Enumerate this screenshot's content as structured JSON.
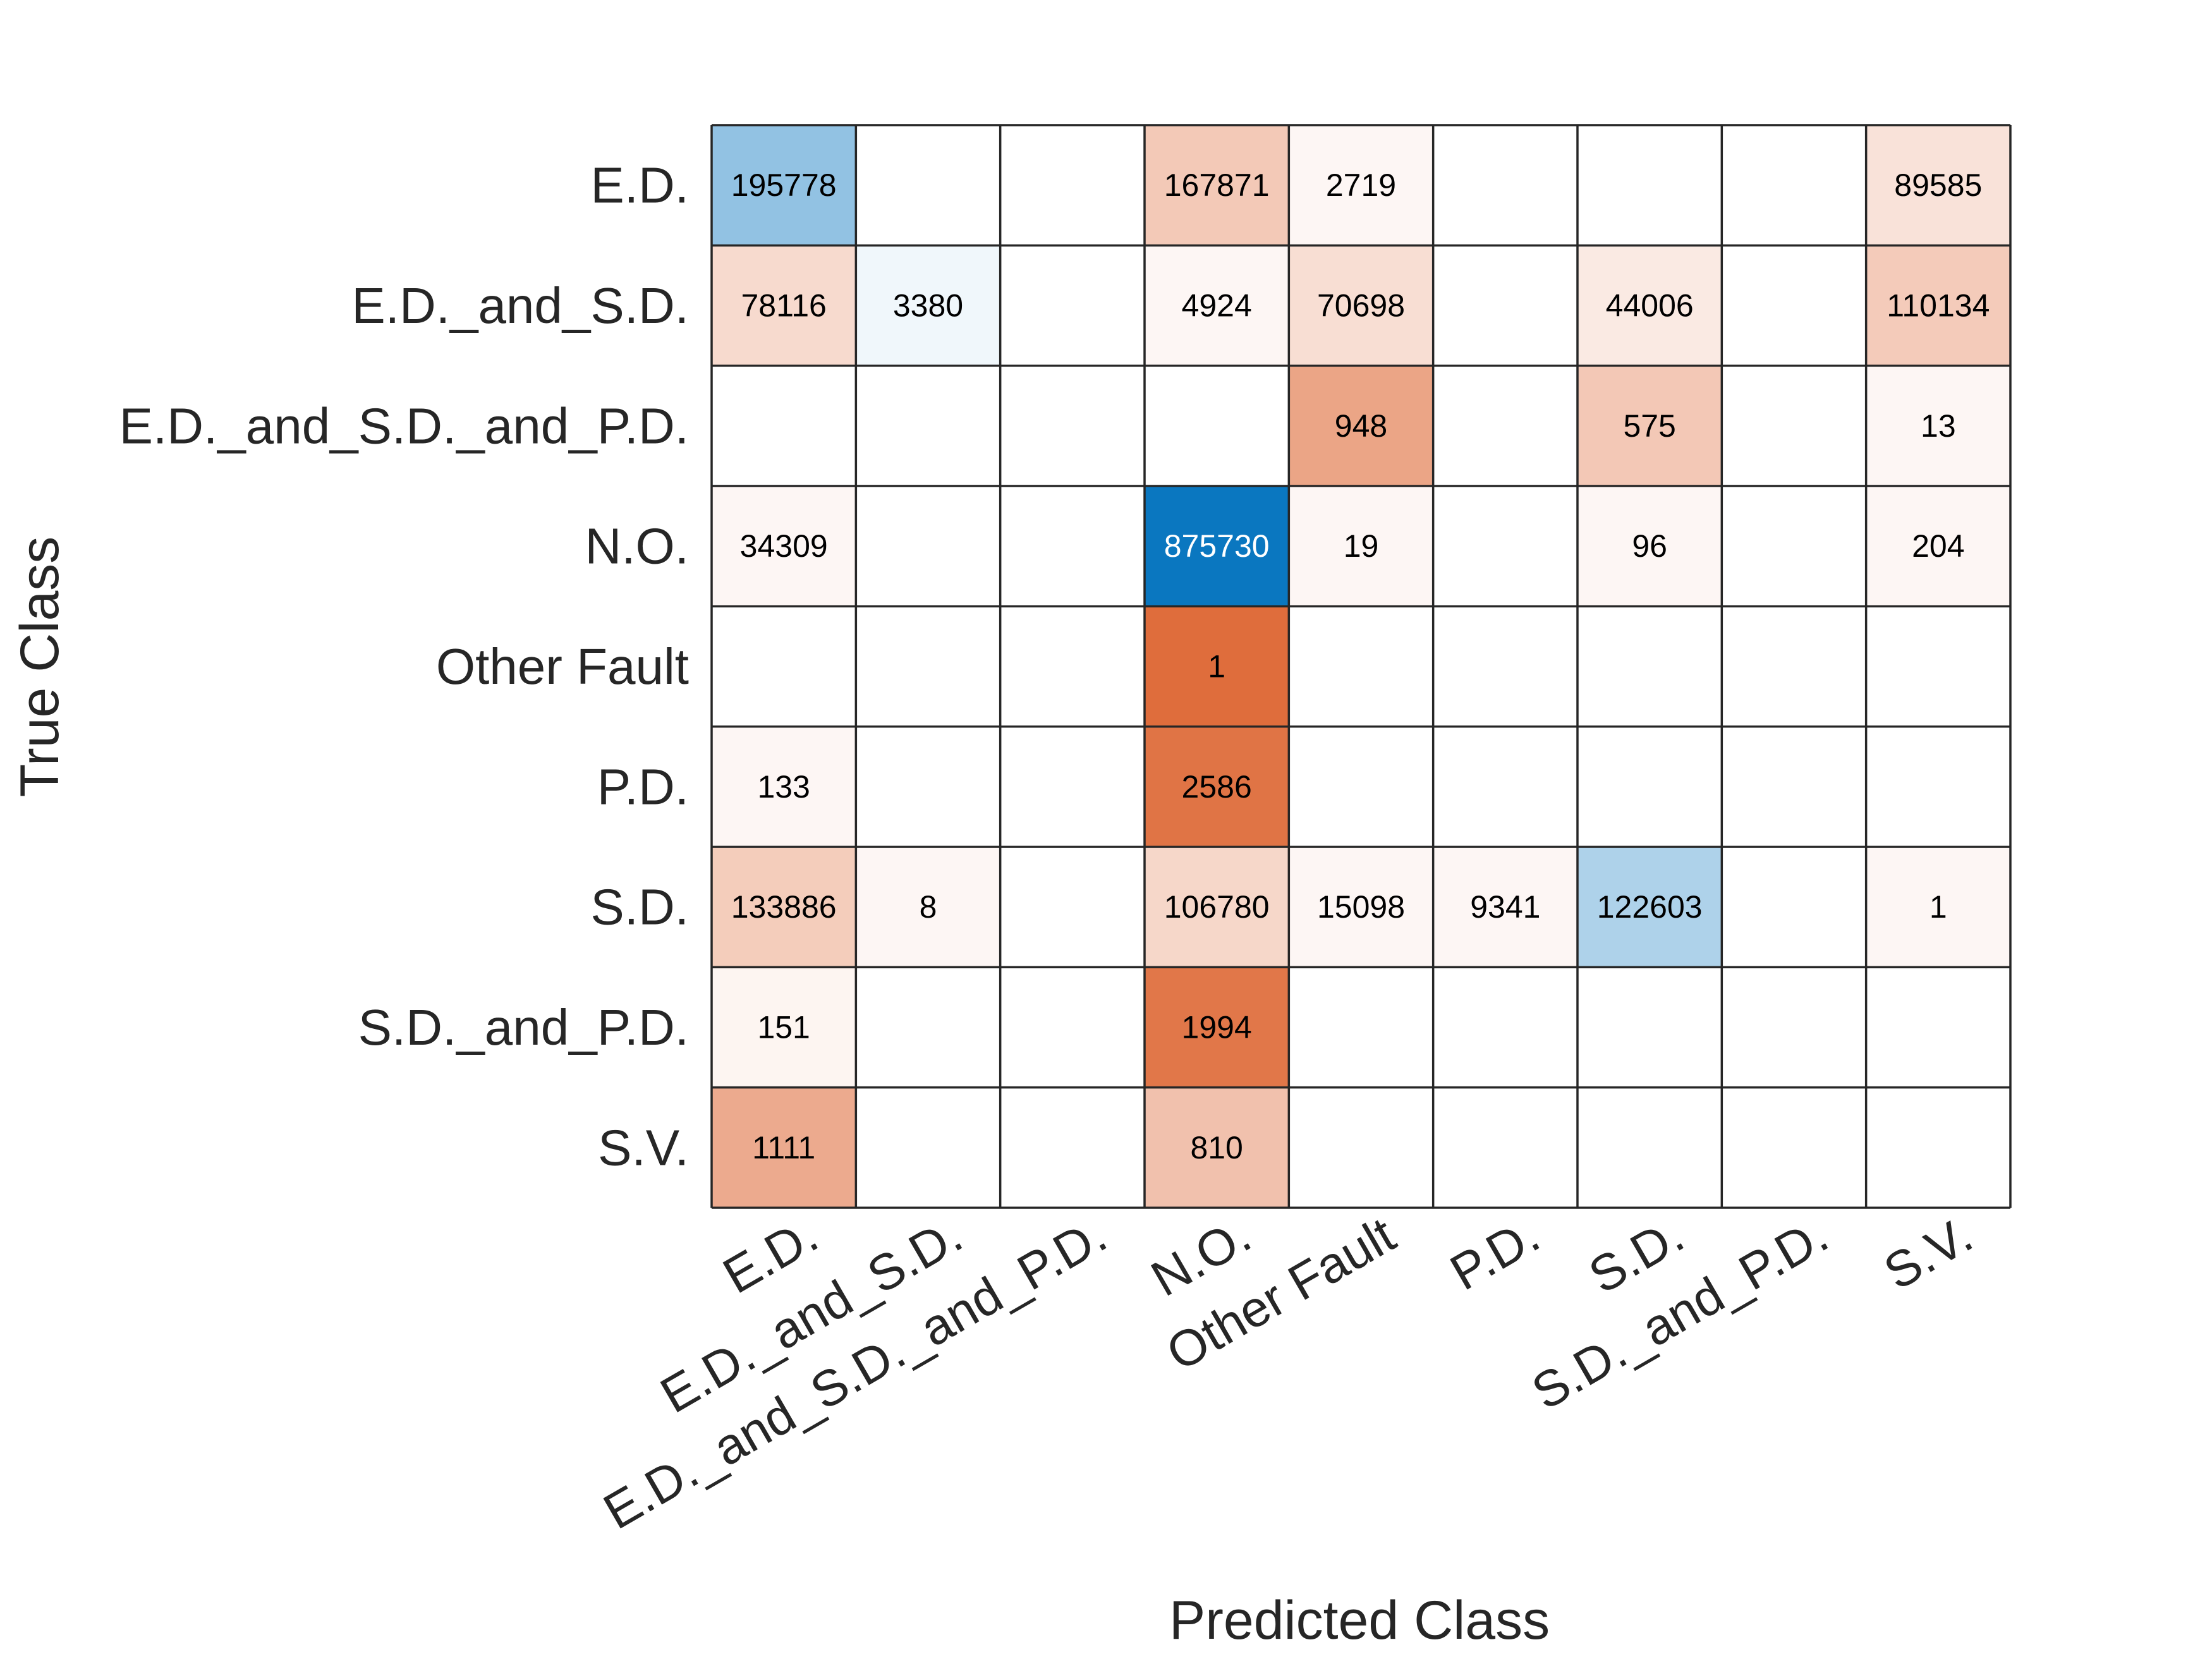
{
  "chart_data": {
    "type": "heatmap",
    "chart_kind": "confusion matrix",
    "xlabel": "Predicted Class",
    "ylabel": "True Class",
    "x_categories": [
      "E.D.",
      "E.D._and_S.D.",
      "E.D._and_S.D._and_P.D.",
      "N.O.",
      "Other Fault",
      "P.D.",
      "S.D.",
      "S.D._and_P.D.",
      "S.V."
    ],
    "y_categories": [
      "E.D.",
      "E.D._and_S.D.",
      "E.D._and_S.D._and_P.D.",
      "N.O.",
      "Other Fault",
      "P.D.",
      "S.D.",
      "S.D._and_P.D.",
      "S.V."
    ],
    "matrix": [
      [
        195778,
        null,
        null,
        167871,
        2719,
        null,
        null,
        null,
        89585
      ],
      [
        78116,
        3380,
        null,
        4924,
        70698,
        null,
        44006,
        null,
        110134
      ],
      [
        null,
        null,
        null,
        null,
        948,
        null,
        575,
        null,
        13
      ],
      [
        34309,
        null,
        null,
        875730,
        19,
        null,
        96,
        null,
        204
      ],
      [
        null,
        null,
        null,
        1,
        null,
        null,
        null,
        null,
        null
      ],
      [
        133,
        null,
        null,
        2586,
        null,
        null,
        null,
        null,
        null
      ],
      [
        133886,
        8,
        null,
        106780,
        15098,
        9341,
        122603,
        null,
        1
      ],
      [
        151,
        null,
        null,
        1994,
        null,
        null,
        null,
        null,
        null
      ],
      [
        1111,
        null,
        null,
        810,
        null,
        null,
        null,
        null,
        null
      ]
    ],
    "color_scale": {
      "diagonal": "blue",
      "off_diagonal": "red",
      "diagonal_max": "#0072BD",
      "off_diagonal_max": "#D95319"
    },
    "grid": true,
    "legend": "none"
  }
}
